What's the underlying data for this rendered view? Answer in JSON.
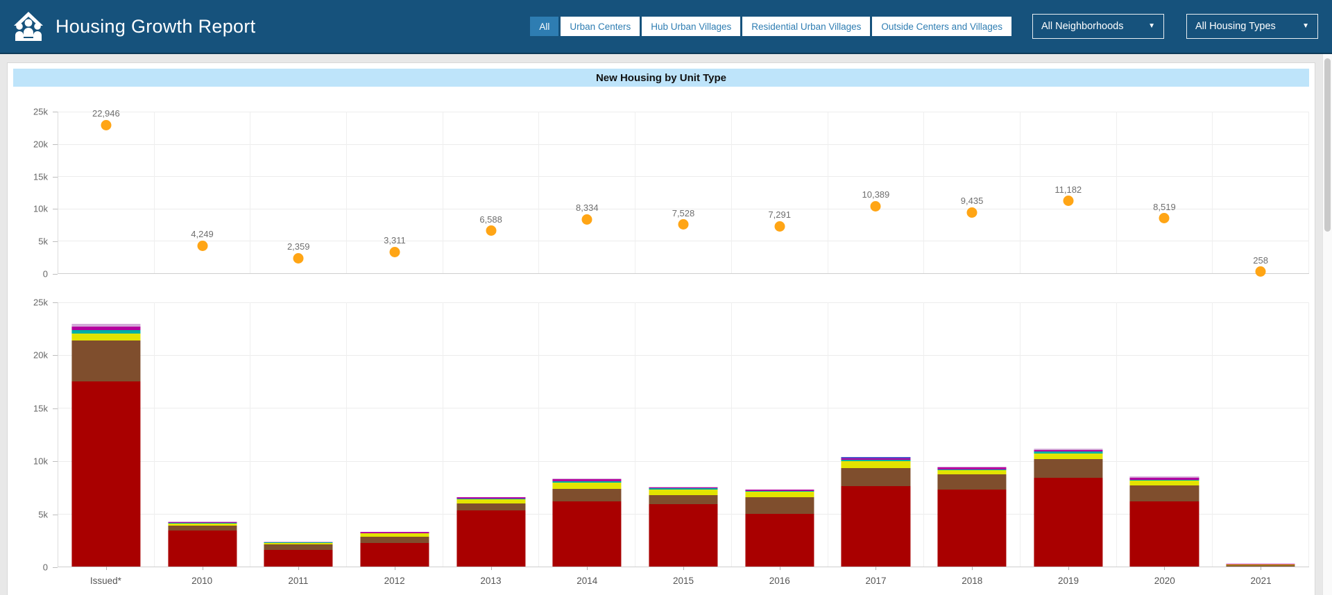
{
  "header": {
    "title": "Housing Growth Report",
    "filters": [
      {
        "label": "All",
        "selected": true
      },
      {
        "label": "Urban Centers",
        "selected": false
      },
      {
        "label": "Hub Urban Villages",
        "selected": false
      },
      {
        "label": "Residential Urban Villages",
        "selected": false
      },
      {
        "label": "Outside Centers and Villages",
        "selected": false
      }
    ],
    "dropdowns": [
      {
        "label": "All Neighborhoods"
      },
      {
        "label": "All Housing Types"
      }
    ]
  },
  "banner_title": "New Housing by Unit Type",
  "colors": {
    "header_bg": "#16527C",
    "accent_blue": "#2E7DB2",
    "banner_bg": "#BEE4FA",
    "point_orange": "#FFA515"
  },
  "chart_data": [
    {
      "type": "scatter",
      "title": "New Housing by Unit Type - totals per year",
      "categories": [
        "Issued*",
        "2010",
        "2011",
        "2012",
        "2013",
        "2014",
        "2015",
        "2016",
        "2017",
        "2018",
        "2019",
        "2020",
        "2021"
      ],
      "values": [
        22946,
        4249,
        2359,
        3311,
        6588,
        8334,
        7528,
        7291,
        10389,
        9435,
        11182,
        8519,
        258
      ],
      "labels": [
        "22,946",
        "4,249",
        "2,359",
        "3,311",
        "6,588",
        "8,334",
        "7,528",
        "7,291",
        "10,389",
        "9,435",
        "11,182",
        "8,519",
        "258"
      ],
      "point_color": "#FFA515",
      "ylim": [
        0,
        25000
      ],
      "yticks": [
        {
          "label": "25k",
          "value": 25000
        },
        {
          "label": "20k",
          "value": 20000
        },
        {
          "label": "15k",
          "value": 15000
        },
        {
          "label": "10k",
          "value": 10000
        },
        {
          "label": "5k",
          "value": 5000
        },
        {
          "label": "0",
          "value": 0
        }
      ],
      "grid": true,
      "legend": "none"
    },
    {
      "type": "bar",
      "stacked": true,
      "title": "New Housing by Unit Type - stacked unit types per year",
      "categories": [
        "Issued*",
        "2010",
        "2011",
        "2012",
        "2013",
        "2014",
        "2015",
        "2016",
        "2017",
        "2018",
        "2019",
        "2020",
        "2021"
      ],
      "series": [
        {
          "name": "segment-dark-red",
          "color": "#A90000",
          "values": [
            17500,
            3400,
            1560,
            2250,
            5300,
            6150,
            5900,
            5000,
            7600,
            7300,
            8400,
            6200,
            0
          ]
        },
        {
          "name": "segment-brown",
          "color": "#7F4E2D",
          "values": [
            3900,
            500,
            520,
            600,
            700,
            1200,
            850,
            1550,
            1750,
            1400,
            1800,
            1450,
            150
          ]
        },
        {
          "name": "segment-yellow",
          "color": "#E3E300",
          "values": [
            620,
            200,
            160,
            280,
            350,
            600,
            560,
            520,
            620,
            400,
            520,
            500,
            80
          ]
        },
        {
          "name": "segment-teal",
          "color": "#00AFA5",
          "values": [
            370,
            50,
            40,
            50,
            80,
            120,
            80,
            80,
            120,
            80,
            190,
            80,
            0
          ]
        },
        {
          "name": "segment-magenta",
          "color": "#B5009E",
          "values": [
            350,
            60,
            50,
            80,
            120,
            200,
            120,
            110,
            150,
            180,
            140,
            160,
            28
          ]
        },
        {
          "name": "segment-blue",
          "color": "#4A57C9",
          "values": [
            0,
            0,
            0,
            0,
            0,
            0,
            0,
            0,
            149,
            0,
            0,
            0,
            0
          ]
        },
        {
          "name": "segment-lavender",
          "color": "#D3A8D8",
          "values": [
            206,
            39,
            29,
            51,
            38,
            64,
            18,
            31,
            0,
            75,
            132,
            129,
            0
          ]
        }
      ],
      "totals": [
        22946,
        4249,
        2359,
        3311,
        6588,
        8334,
        7528,
        7291,
        10389,
        9435,
        11182,
        8519,
        258
      ],
      "ylim": [
        0,
        25000
      ],
      "yticks": [
        {
          "label": "25k",
          "value": 25000
        },
        {
          "label": "20k",
          "value": 20000
        },
        {
          "label": "15k",
          "value": 15000
        },
        {
          "label": "10k",
          "value": 10000
        },
        {
          "label": "5k",
          "value": 5000
        },
        {
          "label": "0",
          "value": 0
        }
      ],
      "grid": true,
      "legend": "none"
    }
  ]
}
